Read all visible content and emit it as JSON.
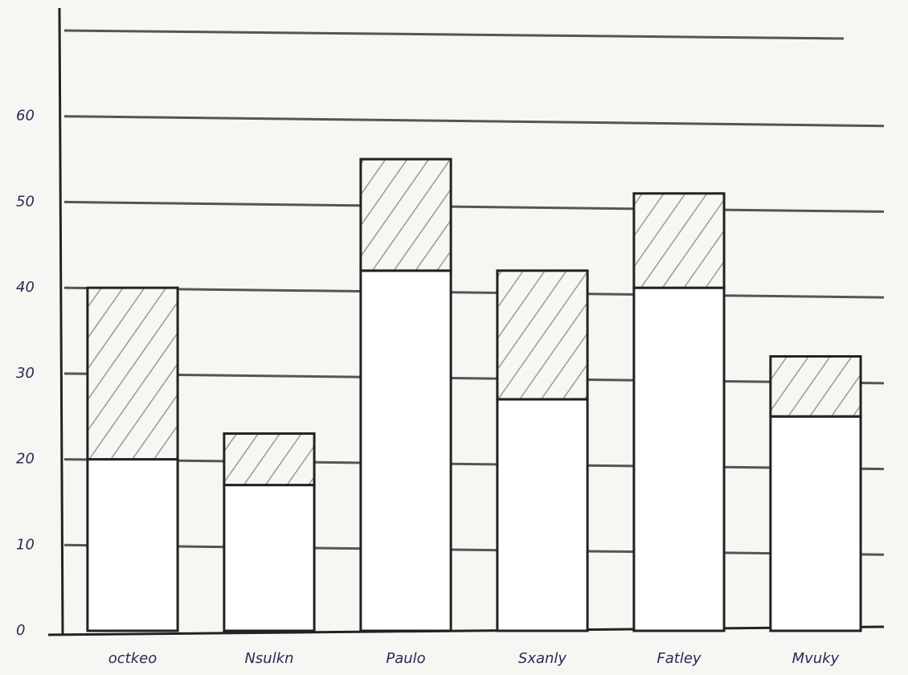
{
  "chart_data": {
    "type": "stacked-bar",
    "categories": [
      "octkeo",
      "Nsulkn",
      "Paulo",
      "Sxanly",
      "Fatley",
      "Mvuky"
    ],
    "series": [
      {
        "color": "#ffffff",
        "hatch": false,
        "values": [
          20,
          17,
          42,
          27,
          40,
          25
        ]
      },
      {
        "color": "#b8b8b8",
        "hatch": true,
        "values": [
          20,
          6,
          13,
          15,
          11,
          7
        ]
      }
    ],
    "ylim": [
      0,
      70
    ],
    "yticks": [
      0,
      10,
      20,
      30,
      40,
      50,
      60
    ],
    "grid": true
  }
}
